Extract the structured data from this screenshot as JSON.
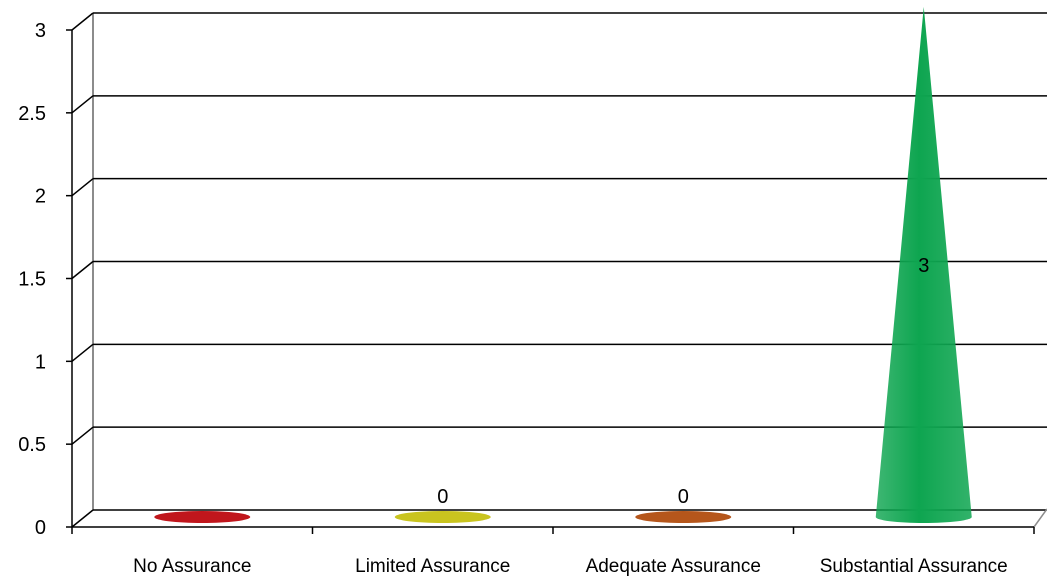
{
  "chart_data": {
    "type": "bar",
    "style": "3d-cone",
    "title": "",
    "xlabel": "",
    "ylabel": "",
    "ylim": [
      0,
      3
    ],
    "y_ticks": [
      "0",
      "0.5",
      "1",
      "1.5",
      "2",
      "2.5",
      "3"
    ],
    "grid": true,
    "legend": "none",
    "categories": [
      "No Assurance",
      "Limited Assurance",
      "Adequate Assurance",
      "Substantial Assurance"
    ],
    "series": [
      {
        "values": [
          0,
          0,
          0,
          3
        ],
        "data_labels": [
          "",
          "0",
          "0",
          "3"
        ],
        "colors": [
          "#c0161c",
          "#c9c41f",
          "#b5561b",
          "#0ea550"
        ]
      }
    ]
  }
}
